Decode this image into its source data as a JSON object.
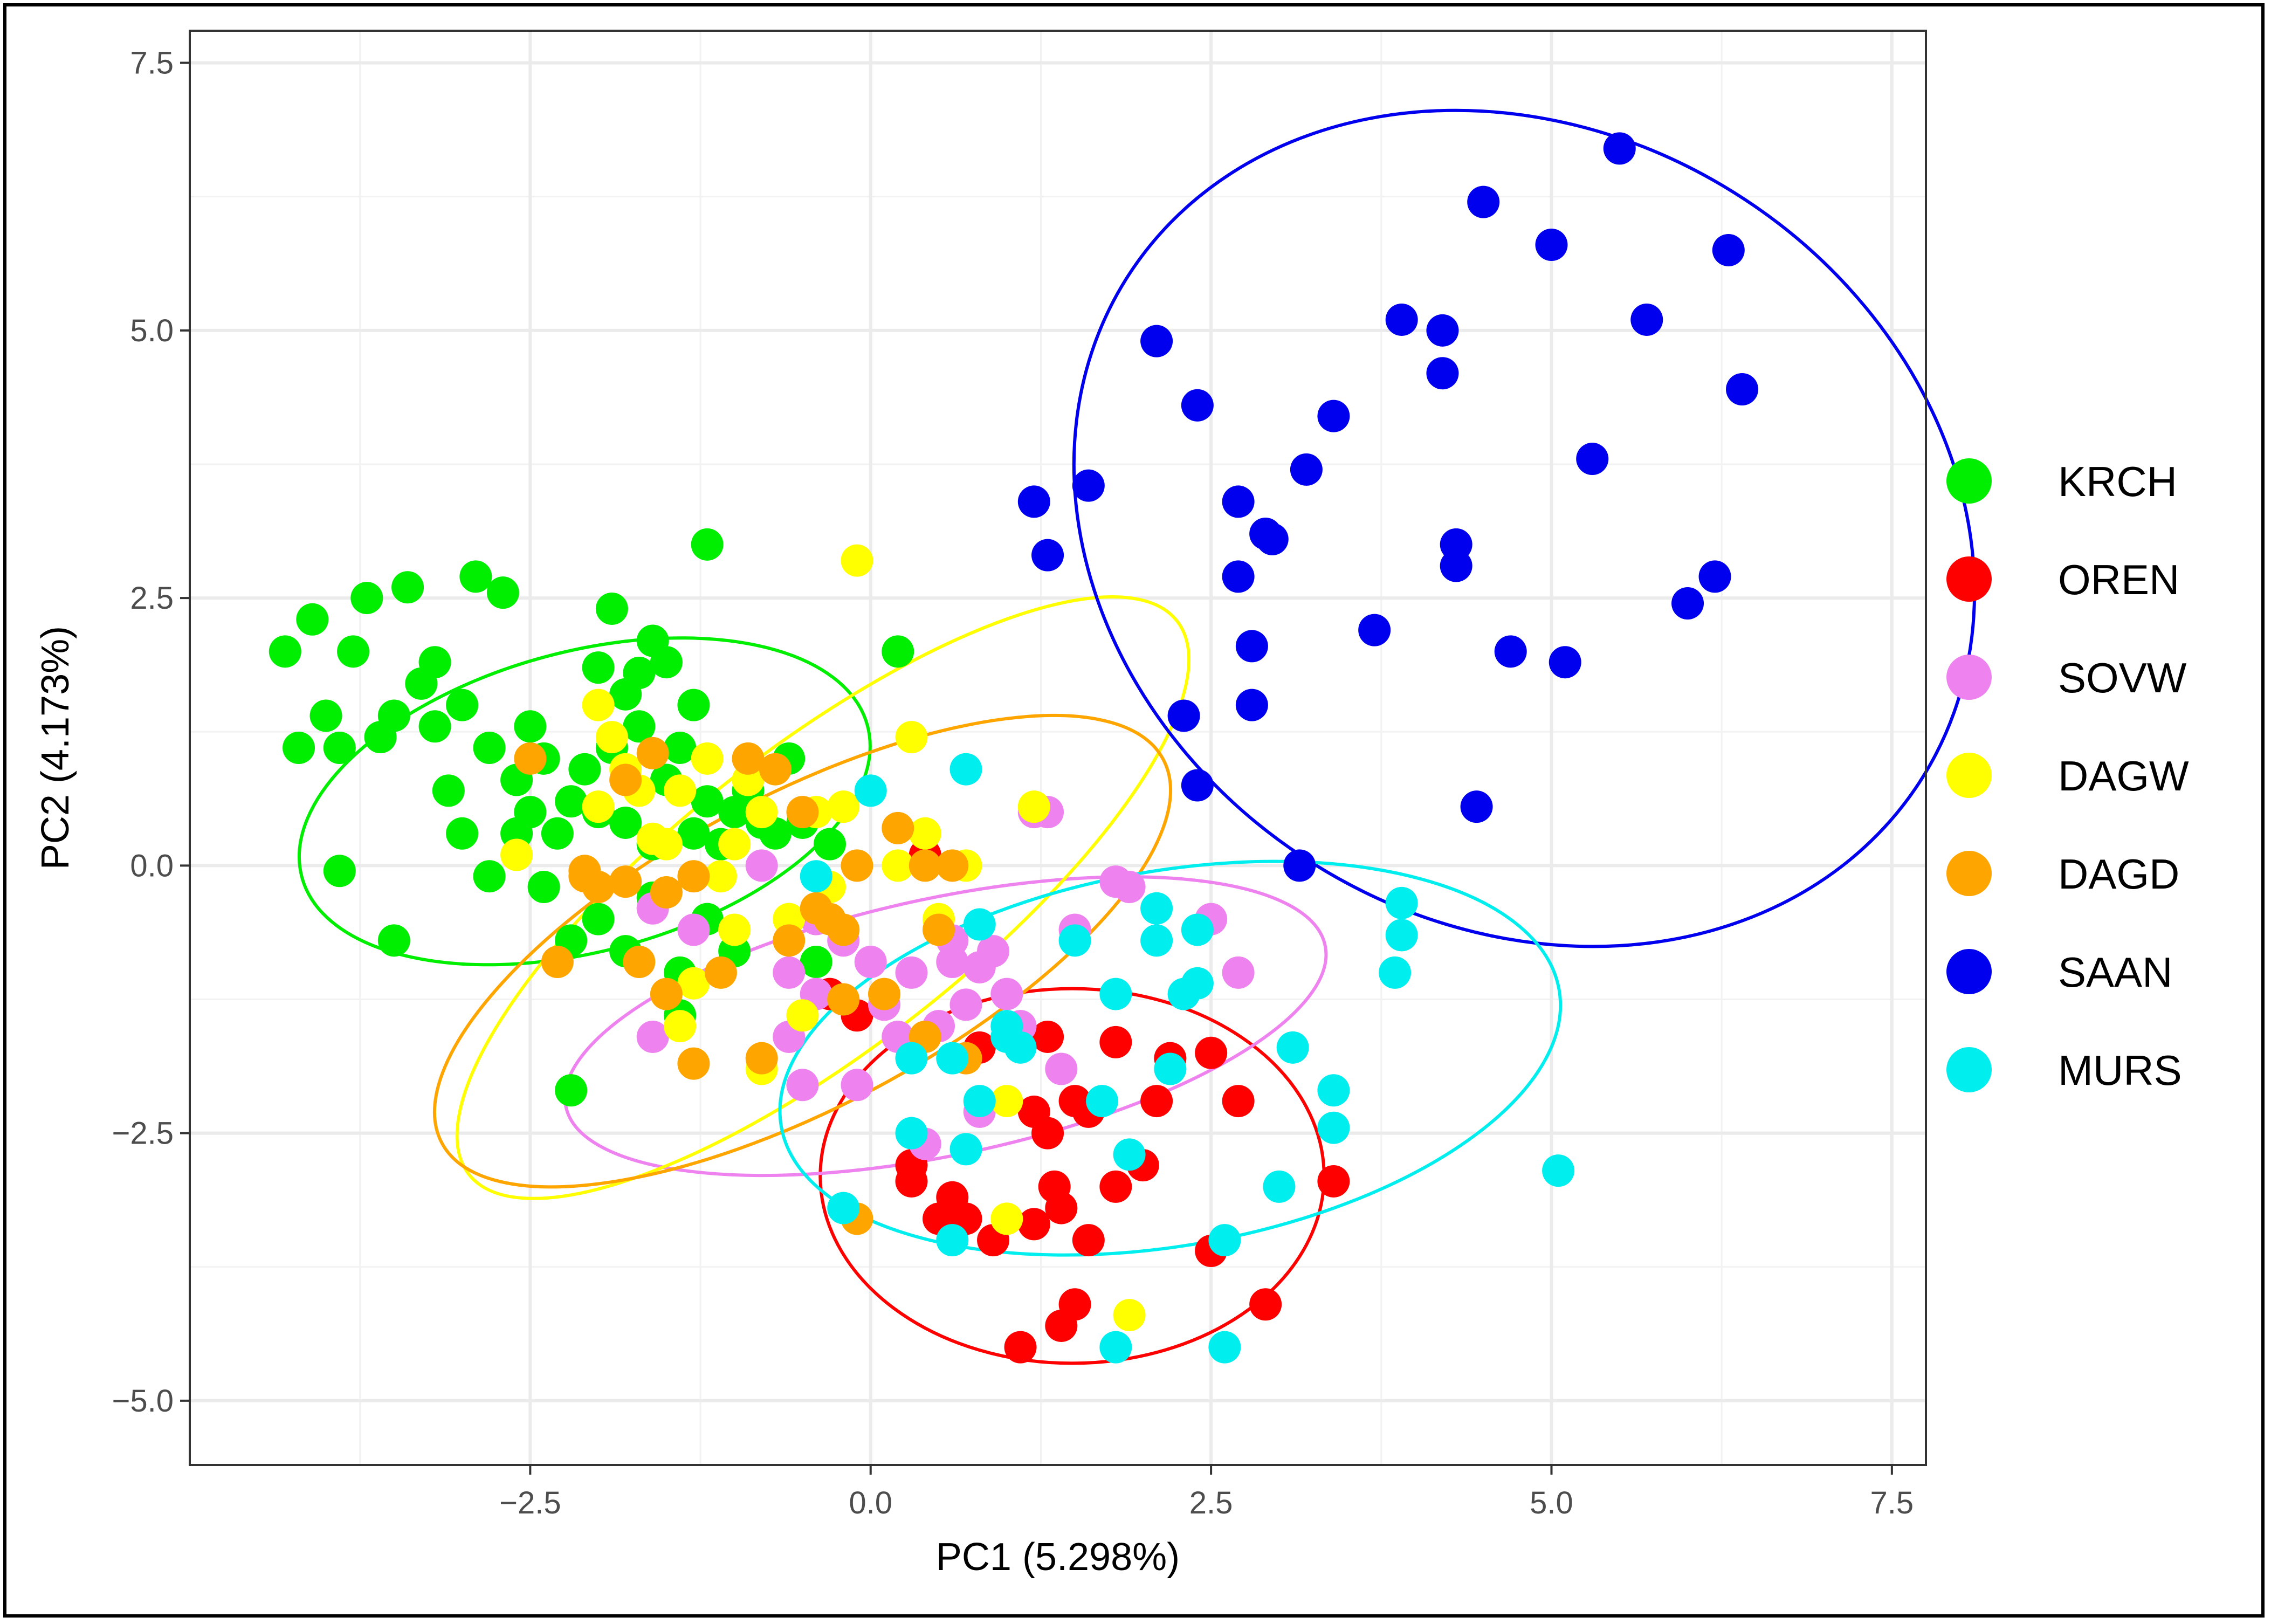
{
  "chart_data": {
    "type": "scatter",
    "xlabel": "PC1 (5.298%)",
    "ylabel": "PC2 (4.173%)",
    "xlim": [
      -5.0,
      7.75
    ],
    "ylim": [
      -5.6,
      7.8
    ],
    "x_ticks": [
      -2.5,
      0.0,
      2.5,
      5.0,
      7.5
    ],
    "x_tick_labels": [
      "−2.5",
      "0.0",
      "2.5",
      "5.0",
      "7.5"
    ],
    "y_ticks": [
      -5.0,
      -2.5,
      0.0,
      2.5,
      5.0,
      7.5
    ],
    "y_tick_labels": [
      "−5.0",
      "−2.5",
      "0.0",
      "2.5",
      "5.0",
      "7.5"
    ],
    "grid": true,
    "legend_position": "right",
    "series": [
      {
        "name": "KRCH",
        "color": "#00ee00",
        "ellipse": {
          "cx": -2.1,
          "cy": 0.6,
          "rx": 2.15,
          "ry": 1.4,
          "angle": -15
        },
        "points": [
          [
            -4.3,
            2.0
          ],
          [
            -4.1,
            2.3
          ],
          [
            -3.8,
            2.0
          ],
          [
            -3.7,
            2.5
          ],
          [
            -3.4,
            2.6
          ],
          [
            -3.2,
            1.9
          ],
          [
            -2.9,
            2.7
          ],
          [
            -2.7,
            2.55
          ],
          [
            -4.2,
            1.1
          ],
          [
            -4.0,
            1.4
          ],
          [
            -3.9,
            1.1
          ],
          [
            -3.6,
            1.2
          ],
          [
            -3.3,
            1.7
          ],
          [
            -3.0,
            1.5
          ],
          [
            -2.8,
            1.1
          ],
          [
            -2.6,
            0.8
          ],
          [
            -2.5,
            0.5
          ],
          [
            -3.1,
            0.7
          ],
          [
            -3.0,
            0.3
          ],
          [
            -2.8,
            -0.1
          ],
          [
            -3.9,
            -0.05
          ],
          [
            -3.5,
            -0.7
          ],
          [
            -2.4,
            -0.2
          ],
          [
            -2.2,
            0.6
          ],
          [
            -2.1,
            0.9
          ],
          [
            -2.0,
            0.5
          ],
          [
            -1.9,
            1.1
          ],
          [
            -1.8,
            0.4
          ],
          [
            -1.7,
            1.3
          ],
          [
            -1.6,
            0.2
          ],
          [
            -1.5,
            0.8
          ],
          [
            -1.4,
            1.1
          ],
          [
            -1.3,
            0.3
          ],
          [
            -1.2,
            0.6
          ],
          [
            -1.1,
            0.2
          ],
          [
            -1.0,
            0.5
          ],
          [
            -0.9,
            0.7
          ],
          [
            -0.8,
            0.4
          ],
          [
            -2.2,
            -0.7
          ],
          [
            -2.0,
            -0.5
          ],
          [
            -1.8,
            -0.8
          ],
          [
            -1.6,
            -0.3
          ],
          [
            -1.4,
            -1.0
          ],
          [
            -1.2,
            -0.5
          ],
          [
            -1.0,
            -0.8
          ],
          [
            -1.4,
            -1.4
          ],
          [
            -2.2,
            -2.1
          ],
          [
            -1.9,
            2.4
          ],
          [
            -1.6,
            2.1
          ],
          [
            -1.2,
            3.0
          ],
          [
            -0.6,
            1.0
          ],
          [
            -0.5,
            0.4
          ],
          [
            -0.3,
            0.2
          ],
          [
            0.2,
            2.0
          ],
          [
            -2.4,
            1.0
          ],
          [
            -2.3,
            0.3
          ],
          [
            -2.6,
            0.3
          ],
          [
            -1.7,
            1.8
          ],
          [
            -2.0,
            1.85
          ],
          [
            -3.2,
            1.3
          ],
          [
            -3.5,
            1.4
          ],
          [
            -1.5,
            1.9
          ],
          [
            -1.3,
            1.5
          ],
          [
            -0.7,
            0.3
          ],
          [
            -0.4,
            -0.9
          ],
          [
            -2.5,
            1.3
          ],
          [
            -1.8,
            1.6
          ]
        ]
      },
      {
        "name": "OREN",
        "color": "#ff0000",
        "ellipse": {
          "cx": 1.48,
          "cy": -2.9,
          "rx": 1.85,
          "ry": 1.75,
          "angle": 0
        },
        "points": [
          [
            0.4,
            0.1
          ],
          [
            0.8,
            -1.7
          ],
          [
            1.3,
            -1.6
          ],
          [
            1.5,
            -2.2
          ],
          [
            1.8,
            -1.65
          ],
          [
            2.2,
            -1.8
          ],
          [
            2.5,
            -1.75
          ],
          [
            2.1,
            -2.2
          ],
          [
            2.7,
            -2.2
          ],
          [
            1.6,
            -2.3
          ],
          [
            1.2,
            -2.3
          ],
          [
            1.3,
            -2.5
          ],
          [
            0.3,
            -2.8
          ],
          [
            0.6,
            -3.1
          ],
          [
            0.7,
            -3.3
          ],
          [
            0.9,
            -3.5
          ],
          [
            1.4,
            -3.2
          ],
          [
            1.8,
            -3.0
          ],
          [
            2.0,
            -2.8
          ],
          [
            1.2,
            -3.35
          ],
          [
            1.6,
            -3.5
          ],
          [
            2.5,
            -3.6
          ],
          [
            3.4,
            -2.95
          ],
          [
            2.9,
            -4.1
          ],
          [
            1.5,
            -4.1
          ],
          [
            1.4,
            -4.3
          ],
          [
            1.1,
            -4.5
          ],
          [
            0.3,
            -2.95
          ],
          [
            -0.1,
            -1.4
          ],
          [
            -0.3,
            -1.2
          ],
          [
            0.5,
            -3.3
          ],
          [
            1.35,
            -3.0
          ]
        ]
      },
      {
        "name": "SOVW",
        "color": "#ee82ee",
        "ellipse": {
          "cx": 0.55,
          "cy": -1.5,
          "rx": 2.85,
          "ry": 1.2,
          "angle": -12
        },
        "points": [
          [
            -1.6,
            -1.6
          ],
          [
            -1.6,
            -0.4
          ],
          [
            -1.3,
            -0.6
          ],
          [
            -0.8,
            0.0
          ],
          [
            -0.6,
            -1.0
          ],
          [
            -0.5,
            -1.4
          ],
          [
            -0.4,
            -1.2
          ],
          [
            -0.2,
            -0.7
          ],
          [
            0.0,
            -0.9
          ],
          [
            0.1,
            -1.3
          ],
          [
            0.3,
            -1.0
          ],
          [
            0.5,
            -1.5
          ],
          [
            0.7,
            -1.3
          ],
          [
            0.9,
            -0.8
          ],
          [
            1.0,
            -1.2
          ],
          [
            1.2,
            0.5
          ],
          [
            1.3,
            0.5
          ],
          [
            1.5,
            -0.6
          ],
          [
            1.8,
            -0.15
          ],
          [
            1.9,
            -0.2
          ],
          [
            2.5,
            -0.5
          ],
          [
            2.7,
            -1.0
          ],
          [
            0.6,
            -0.9
          ],
          [
            0.8,
            -2.3
          ],
          [
            0.4,
            -2.6
          ],
          [
            -0.5,
            -2.05
          ],
          [
            -0.1,
            -2.05
          ],
          [
            -0.6,
            -1.6
          ],
          [
            0.2,
            -1.6
          ],
          [
            0.8,
            -0.95
          ],
          [
            1.1,
            -1.5
          ],
          [
            -0.4,
            -0.5
          ],
          [
            0.6,
            -0.7
          ],
          [
            1.4,
            -1.9
          ]
        ]
      },
      {
        "name": "DAGW",
        "color": "#ffff00",
        "ellipse": {
          "cx": -0.35,
          "cy": -0.3,
          "rx": 3.3,
          "ry": 1.4,
          "angle": -38
        },
        "points": [
          [
            -2.0,
            1.5
          ],
          [
            -1.9,
            1.2
          ],
          [
            -1.8,
            0.9
          ],
          [
            -1.7,
            0.7
          ],
          [
            -1.5,
            0.2
          ],
          [
            -1.4,
            0.7
          ],
          [
            -1.2,
            1.0
          ],
          [
            -1.0,
            0.2
          ],
          [
            -0.9,
            0.8
          ],
          [
            -0.8,
            0.5
          ],
          [
            -0.6,
            -0.5
          ],
          [
            -0.4,
            0.5
          ],
          [
            -0.3,
            -0.2
          ],
          [
            -0.1,
            2.85
          ],
          [
            0.2,
            0.0
          ],
          [
            0.3,
            1.2
          ],
          [
            0.5,
            -0.5
          ],
          [
            0.7,
            0.0
          ],
          [
            1.2,
            0.55
          ],
          [
            -1.3,
            -1.1
          ],
          [
            -1.0,
            -0.6
          ],
          [
            -0.8,
            -1.9
          ],
          [
            -0.5,
            -1.4
          ],
          [
            -2.6,
            0.1
          ],
          [
            -2.0,
            0.55
          ],
          [
            1.0,
            -2.2
          ],
          [
            1.0,
            -3.3
          ],
          [
            1.9,
            -4.2
          ],
          [
            -1.6,
            0.25
          ],
          [
            -0.2,
            0.55
          ],
          [
            -1.4,
            -1.5
          ],
          [
            -1.1,
            -0.1
          ],
          [
            0.4,
            0.3
          ]
        ]
      },
      {
        "name": "DAGD",
        "color": "#ffa500",
        "ellipse": {
          "cx": -0.5,
          "cy": -0.8,
          "rx": 3.0,
          "ry": 1.45,
          "angle": -28
        },
        "points": [
          [
            -2.5,
            1.0
          ],
          [
            -2.1,
            -0.1
          ],
          [
            -2.0,
            -0.2
          ],
          [
            -1.8,
            -0.15
          ],
          [
            -1.7,
            -0.9
          ],
          [
            -1.6,
            1.05
          ],
          [
            -1.5,
            -0.25
          ],
          [
            -1.3,
            -0.1
          ],
          [
            -1.1,
            -1.0
          ],
          [
            -0.9,
            1.0
          ],
          [
            -0.7,
            0.9
          ],
          [
            -0.5,
            0.5
          ],
          [
            -0.4,
            -0.4
          ],
          [
            -0.3,
            -0.5
          ],
          [
            -0.2,
            -0.6
          ],
          [
            -0.1,
            0.0
          ],
          [
            0.2,
            0.35
          ],
          [
            0.4,
            0.0
          ],
          [
            0.5,
            -0.6
          ],
          [
            0.6,
            0.0
          ],
          [
            -0.2,
            -1.25
          ],
          [
            0.1,
            -1.2
          ],
          [
            0.4,
            -1.6
          ],
          [
            -1.5,
            -1.2
          ],
          [
            -1.3,
            -1.85
          ],
          [
            -0.8,
            -1.8
          ],
          [
            0.7,
            -1.8
          ],
          [
            -2.3,
            -0.9
          ],
          [
            -0.1,
            -3.3
          ],
          [
            -2.1,
            -0.05
          ],
          [
            -0.6,
            -0.7
          ],
          [
            -1.8,
            0.8
          ]
        ]
      },
      {
        "name": "SAAN",
        "color": "#0000ee",
        "ellipse": {
          "cx": 4.8,
          "cy": 3.15,
          "rx": 3.45,
          "ry": 3.7,
          "angle": 32
        },
        "points": [
          [
            1.2,
            3.4
          ],
          [
            1.3,
            2.9
          ],
          [
            1.6,
            3.55
          ],
          [
            2.1,
            4.9
          ],
          [
            2.4,
            4.3
          ],
          [
            2.7,
            3.4
          ],
          [
            2.7,
            2.7
          ],
          [
            2.8,
            1.5
          ],
          [
            2.8,
            2.05
          ],
          [
            2.9,
            3.1
          ],
          [
            2.95,
            3.05
          ],
          [
            3.2,
            3.7
          ],
          [
            3.4,
            4.2
          ],
          [
            3.7,
            2.2
          ],
          [
            3.9,
            5.1
          ],
          [
            4.2,
            5.0
          ],
          [
            4.2,
            4.6
          ],
          [
            4.3,
            3.0
          ],
          [
            4.3,
            2.8
          ],
          [
            4.5,
            6.2
          ],
          [
            4.7,
            2.0
          ],
          [
            5.0,
            5.8
          ],
          [
            5.1,
            1.9
          ],
          [
            5.3,
            3.8
          ],
          [
            5.5,
            6.7
          ],
          [
            5.7,
            5.1
          ],
          [
            6.0,
            2.45
          ],
          [
            6.2,
            2.7
          ],
          [
            6.3,
            5.75
          ],
          [
            6.4,
            4.45
          ],
          [
            2.3,
            1.4
          ],
          [
            2.4,
            0.75
          ],
          [
            3.15,
            0.0
          ],
          [
            4.45,
            0.55
          ]
        ]
      },
      {
        "name": "MURS",
        "color": "#00eeee",
        "ellipse": {
          "cx": 2.2,
          "cy": -1.8,
          "rx": 2.9,
          "ry": 1.75,
          "angle": -10
        },
        "points": [
          [
            0.7,
            0.9
          ],
          [
            0.0,
            0.7
          ],
          [
            -0.4,
            -0.1
          ],
          [
            0.3,
            -1.8
          ],
          [
            0.6,
            -1.8
          ],
          [
            0.8,
            -0.55
          ],
          [
            1.0,
            -1.6
          ],
          [
            1.1,
            -1.7
          ],
          [
            1.5,
            -0.7
          ],
          [
            1.8,
            -1.2
          ],
          [
            2.1,
            -0.4
          ],
          [
            2.1,
            -0.7
          ],
          [
            2.4,
            -0.6
          ],
          [
            2.3,
            -1.2
          ],
          [
            2.4,
            -1.1
          ],
          [
            2.2,
            -1.9
          ],
          [
            1.7,
            -2.2
          ],
          [
            1.9,
            -2.7
          ],
          [
            0.7,
            -2.65
          ],
          [
            0.3,
            -2.5
          ],
          [
            0.8,
            -2.2
          ],
          [
            -0.2,
            -3.2
          ],
          [
            3.1,
            -1.7
          ],
          [
            3.4,
            -2.1
          ],
          [
            3.4,
            -2.45
          ],
          [
            3.0,
            -3.0
          ],
          [
            2.6,
            -3.5
          ],
          [
            2.6,
            -4.5
          ],
          [
            1.8,
            -4.5
          ],
          [
            0.6,
            -3.5
          ],
          [
            3.9,
            -0.35
          ],
          [
            3.9,
            -0.65
          ],
          [
            3.85,
            -1.0
          ],
          [
            5.05,
            -2.85
          ],
          [
            1.0,
            -1.5
          ]
        ]
      }
    ]
  }
}
